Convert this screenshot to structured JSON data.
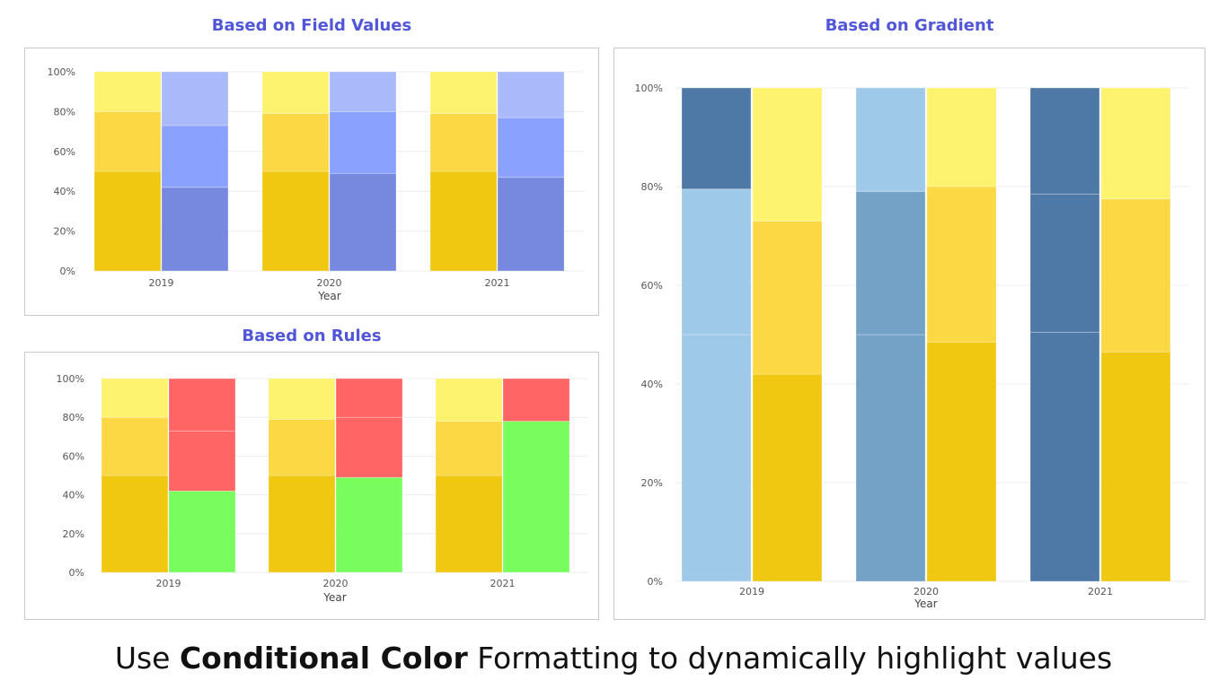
{
  "caption": {
    "prefix": "Use ",
    "bold": "Conditional Color",
    "suffix": " Formatting to dynamically highlight values"
  },
  "chart_data": [
    {
      "type": "bar",
      "stacked": true,
      "percent": true,
      "title": "Based on Field Values",
      "xlabel": "Year",
      "ylabel": "",
      "categories": [
        "2019",
        "2020",
        "2021"
      ],
      "yticks": [
        "0%",
        "20%",
        "40%",
        "60%",
        "80%",
        "100%"
      ],
      "ylim": [
        0,
        100
      ],
      "grid": true,
      "legend": "none",
      "groups": [
        {
          "segments": [
            {
              "values": [
                50,
                50,
                50
              ],
              "color": "#f1c811"
            },
            {
              "values": [
                30,
                29,
                29
              ],
              "color": "#fbd844"
            },
            {
              "values": [
                20,
                21,
                21
              ],
              "color": "#fef36e"
            }
          ]
        },
        {
          "segments": [
            {
              "values": [
                42,
                49,
                47
              ],
              "color": "#7689de"
            },
            {
              "values": [
                31,
                31,
                30
              ],
              "color": "#8aa1fd"
            },
            {
              "values": [
                27,
                20,
                23
              ],
              "color": "#aab9fa"
            }
          ]
        }
      ]
    },
    {
      "type": "bar",
      "stacked": true,
      "percent": true,
      "title": "Based on Rules",
      "xlabel": "Year",
      "ylabel": "",
      "categories": [
        "2019",
        "2020",
        "2021"
      ],
      "yticks": [
        "0%",
        "20%",
        "40%",
        "60%",
        "80%",
        "100%"
      ],
      "ylim": [
        0,
        100
      ],
      "grid": true,
      "legend": "none",
      "groups": [
        {
          "segments": [
            {
              "values": [
                50,
                50,
                50
              ],
              "color": "#f1c811"
            },
            {
              "values": [
                30,
                29,
                28
              ],
              "color": "#fbd844"
            },
            {
              "values": [
                20,
                21,
                22
              ],
              "color": "#fef36e"
            }
          ]
        },
        {
          "segments": [
            {
              "values": [
                42,
                49,
                78
              ],
              "color": "#79fd5e"
            },
            {
              "values": [
                31,
                31,
                0
              ],
              "color": "#ff6565"
            },
            {
              "values": [
                27,
                20,
                22
              ],
              "color": "#ff6565"
            }
          ]
        }
      ]
    },
    {
      "type": "bar",
      "stacked": true,
      "percent": true,
      "title": "Based on Gradient",
      "xlabel": "Year",
      "ylabel": "",
      "categories": [
        "2019",
        "2020",
        "2021"
      ],
      "yticks": [
        "0%",
        "20%",
        "40%",
        "60%",
        "80%",
        "100%"
      ],
      "ylim": [
        0,
        100
      ],
      "grid": true,
      "legend": "none",
      "groups": [
        {
          "segments": [
            {
              "values": [
                50,
                50,
                50.5
              ],
              "colors": [
                "#9fc9e8",
                "#74a1c6",
                "#4e79a7"
              ]
            },
            {
              "values": [
                29.5,
                29,
                28
              ],
              "colors": [
                "#9fc9e8",
                "#74a1c6",
                "#4e79a7"
              ]
            },
            {
              "values": [
                20.5,
                21,
                21.5
              ],
              "colors": [
                "#4e79a7",
                "#9fc9e8",
                "#4e79a7"
              ]
            }
          ]
        },
        {
          "segments": [
            {
              "values": [
                42,
                48.5,
                46.5
              ],
              "color": "#f1c811"
            },
            {
              "values": [
                31,
                31.5,
                31
              ],
              "color": "#fbd844"
            },
            {
              "values": [
                27,
                20,
                22.5
              ],
              "color": "#fef36e"
            }
          ]
        }
      ]
    }
  ]
}
